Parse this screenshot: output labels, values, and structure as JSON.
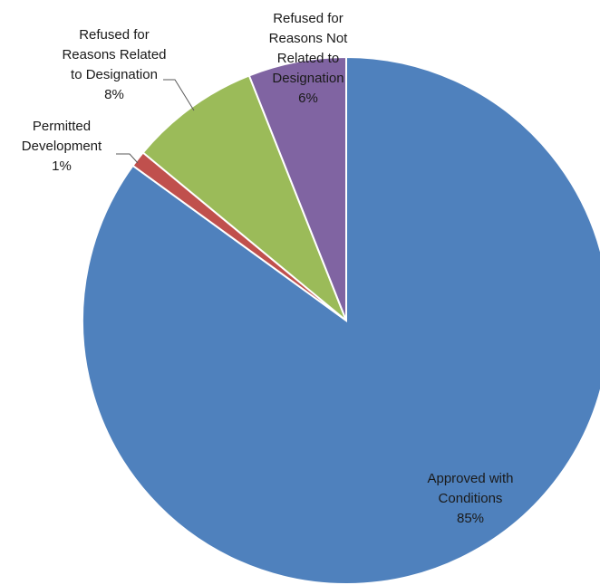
{
  "chart_data": {
    "type": "pie",
    "title": "",
    "start": "12 o'clock",
    "direction": "clockwise",
    "slices": [
      {
        "label_lines": [
          "Approved with",
          "Conditions"
        ],
        "value_label": "85%",
        "value": 85,
        "color": "#4f81bd"
      },
      {
        "label_lines": [
          "Permitted",
          "Development"
        ],
        "value_label": "1%",
        "value": 1,
        "color": "#c0504d"
      },
      {
        "label_lines": [
          "Refused for",
          "Reasons Related",
          "to Designation"
        ],
        "value_label": "8%",
        "value": 8,
        "color": "#9bbb59"
      },
      {
        "label_lines": [
          "Refused for",
          "Reasons Not",
          "Related to",
          "Designation"
        ],
        "value_label": "6%",
        "value": 6,
        "color": "#8064a2"
      }
    ],
    "legend": "none"
  }
}
